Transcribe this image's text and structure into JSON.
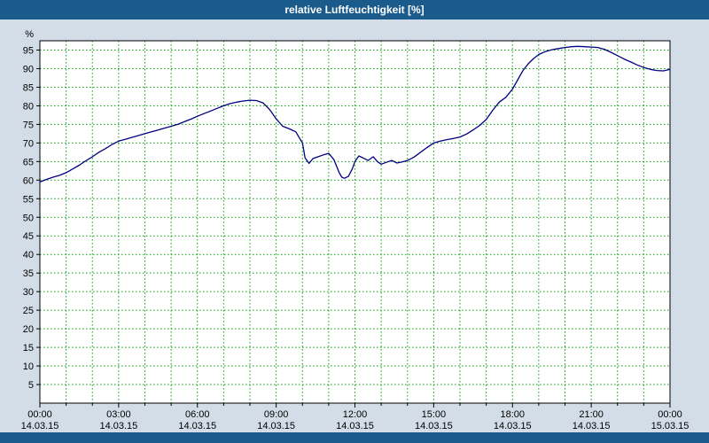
{
  "window": {
    "title": "relative Luftfeuchtigkeit [%]"
  },
  "theme": {
    "titlebar_bg": "#1a5b8c",
    "bottombar_bg": "#1a5b8c",
    "page_bg": "#d3dde7",
    "plot_bg": "#ffffff",
    "grid_color": "#00a000",
    "line_color": "#000080",
    "axis_text_color": "#000000",
    "frame_color": "#000000",
    "title_text_color": "#ffffff"
  },
  "chart_data": {
    "type": "line",
    "title": "relative Luftfeuchtigkeit [%]",
    "series_name": "relative Luftfeuchtigkeit",
    "ylabel": "%",
    "ylim": [
      0,
      97.5
    ],
    "ytick_start": 5,
    "ytick_end": 95,
    "ytick_step": 5,
    "grid": true,
    "legend": "none",
    "x_axis": {
      "tick_hours": [
        0,
        3,
        6,
        9,
        12,
        15,
        18,
        21,
        24
      ],
      "tick_labels": [
        "00:00",
        "03:00",
        "06:00",
        "09:00",
        "12:00",
        "15:00",
        "18:00",
        "21:00",
        "00:00"
      ],
      "date_labels": [
        "14.03.15",
        "14.03.15",
        "14.03.15",
        "14.03.15",
        "14.03.15",
        "14.03.15",
        "14.03.15",
        "14.03.15",
        "15.03.15"
      ]
    },
    "points": [
      [
        0.0,
        59.5
      ],
      [
        0.25,
        60.2
      ],
      [
        0.5,
        60.8
      ],
      [
        0.75,
        61.3
      ],
      [
        1.0,
        62.0
      ],
      [
        1.25,
        63.0
      ],
      [
        1.5,
        64.0
      ],
      [
        1.75,
        65.2
      ],
      [
        2.0,
        66.3
      ],
      [
        2.25,
        67.5
      ],
      [
        2.5,
        68.5
      ],
      [
        2.75,
        69.6
      ],
      [
        3.0,
        70.5
      ],
      [
        3.25,
        71.0
      ],
      [
        3.5,
        71.5
      ],
      [
        3.75,
        72.0
      ],
      [
        4.0,
        72.5
      ],
      [
        4.25,
        73.0
      ],
      [
        4.5,
        73.5
      ],
      [
        4.75,
        74.0
      ],
      [
        5.0,
        74.5
      ],
      [
        5.25,
        75.0
      ],
      [
        5.5,
        75.7
      ],
      [
        5.75,
        76.4
      ],
      [
        6.0,
        77.2
      ],
      [
        6.25,
        77.9
      ],
      [
        6.5,
        78.6
      ],
      [
        6.75,
        79.3
      ],
      [
        7.0,
        80.0
      ],
      [
        7.25,
        80.6
      ],
      [
        7.5,
        81.0
      ],
      [
        7.75,
        81.3
      ],
      [
        8.0,
        81.5
      ],
      [
        8.25,
        81.4
      ],
      [
        8.5,
        80.8
      ],
      [
        8.75,
        79.0
      ],
      [
        9.0,
        76.5
      ],
      [
        9.25,
        74.5
      ],
      [
        9.5,
        73.8
      ],
      [
        9.75,
        73.0
      ],
      [
        10.0,
        70.0
      ],
      [
        10.1,
        66.0
      ],
      [
        10.25,
        64.5
      ],
      [
        10.4,
        65.8
      ],
      [
        10.6,
        66.3
      ],
      [
        10.8,
        66.8
      ],
      [
        11.0,
        67.2
      ],
      [
        11.2,
        65.5
      ],
      [
        11.4,
        62.0
      ],
      [
        11.5,
        60.8
      ],
      [
        11.6,
        60.5
      ],
      [
        11.75,
        61.0
      ],
      [
        11.9,
        63.0
      ],
      [
        12.0,
        65.0
      ],
      [
        12.15,
        66.5
      ],
      [
        12.3,
        66.0
      ],
      [
        12.5,
        65.3
      ],
      [
        12.7,
        66.3
      ],
      [
        12.85,
        65.0
      ],
      [
        13.0,
        64.3
      ],
      [
        13.2,
        64.8
      ],
      [
        13.4,
        65.3
      ],
      [
        13.6,
        64.6
      ],
      [
        13.8,
        64.9
      ],
      [
        14.0,
        65.3
      ],
      [
        14.25,
        66.2
      ],
      [
        14.5,
        67.5
      ],
      [
        14.75,
        68.8
      ],
      [
        15.0,
        70.0
      ],
      [
        15.25,
        70.5
      ],
      [
        15.5,
        70.9
      ],
      [
        15.75,
        71.2
      ],
      [
        16.0,
        71.6
      ],
      [
        16.25,
        72.4
      ],
      [
        16.5,
        73.5
      ],
      [
        16.75,
        74.7
      ],
      [
        17.0,
        76.3
      ],
      [
        17.25,
        78.8
      ],
      [
        17.5,
        81.0
      ],
      [
        17.75,
        82.3
      ],
      [
        18.0,
        84.5
      ],
      [
        18.2,
        87.0
      ],
      [
        18.4,
        89.5
      ],
      [
        18.6,
        91.3
      ],
      [
        18.8,
        92.7
      ],
      [
        19.0,
        93.8
      ],
      [
        19.25,
        94.6
      ],
      [
        19.5,
        95.1
      ],
      [
        19.75,
        95.4
      ],
      [
        20.0,
        95.7
      ],
      [
        20.25,
        95.9
      ],
      [
        20.5,
        96.0
      ],
      [
        20.75,
        95.9
      ],
      [
        21.0,
        95.8
      ],
      [
        21.25,
        95.7
      ],
      [
        21.5,
        95.2
      ],
      [
        21.75,
        94.4
      ],
      [
        22.0,
        93.5
      ],
      [
        22.25,
        92.6
      ],
      [
        22.5,
        91.8
      ],
      [
        22.75,
        91.0
      ],
      [
        23.0,
        90.3
      ],
      [
        23.25,
        89.8
      ],
      [
        23.5,
        89.5
      ],
      [
        23.75,
        89.4
      ],
      [
        24.0,
        89.8
      ]
    ]
  }
}
